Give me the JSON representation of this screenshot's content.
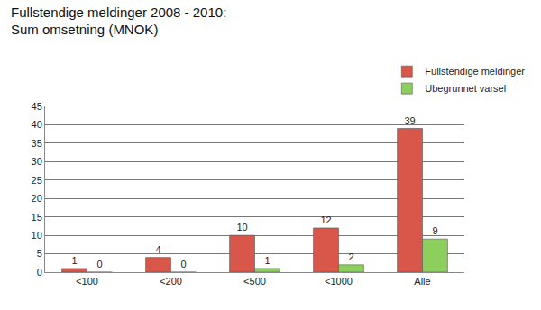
{
  "chart_data": {
    "type": "bar",
    "title": "Fullstendige meldinger 2008 - 2010:",
    "subtitle": "Sum omsetning (MNOK)",
    "categories": [
      "<100",
      "<200",
      "<500",
      "<1000",
      "Alle"
    ],
    "series": [
      {
        "name": "Fullstendige meldinger",
        "color": "#d9574a",
        "values": [
          1,
          4,
          10,
          12,
          39
        ]
      },
      {
        "name": "Ubegrunnet varsel",
        "color": "#8ccf5c",
        "values": [
          0,
          0,
          1,
          2,
          9
        ]
      }
    ],
    "ylim": [
      0,
      45
    ],
    "yticks": [
      0,
      5,
      10,
      15,
      20,
      25,
      30,
      35,
      40,
      45
    ],
    "grid": true,
    "legend": "top right",
    "data_labels": true
  }
}
